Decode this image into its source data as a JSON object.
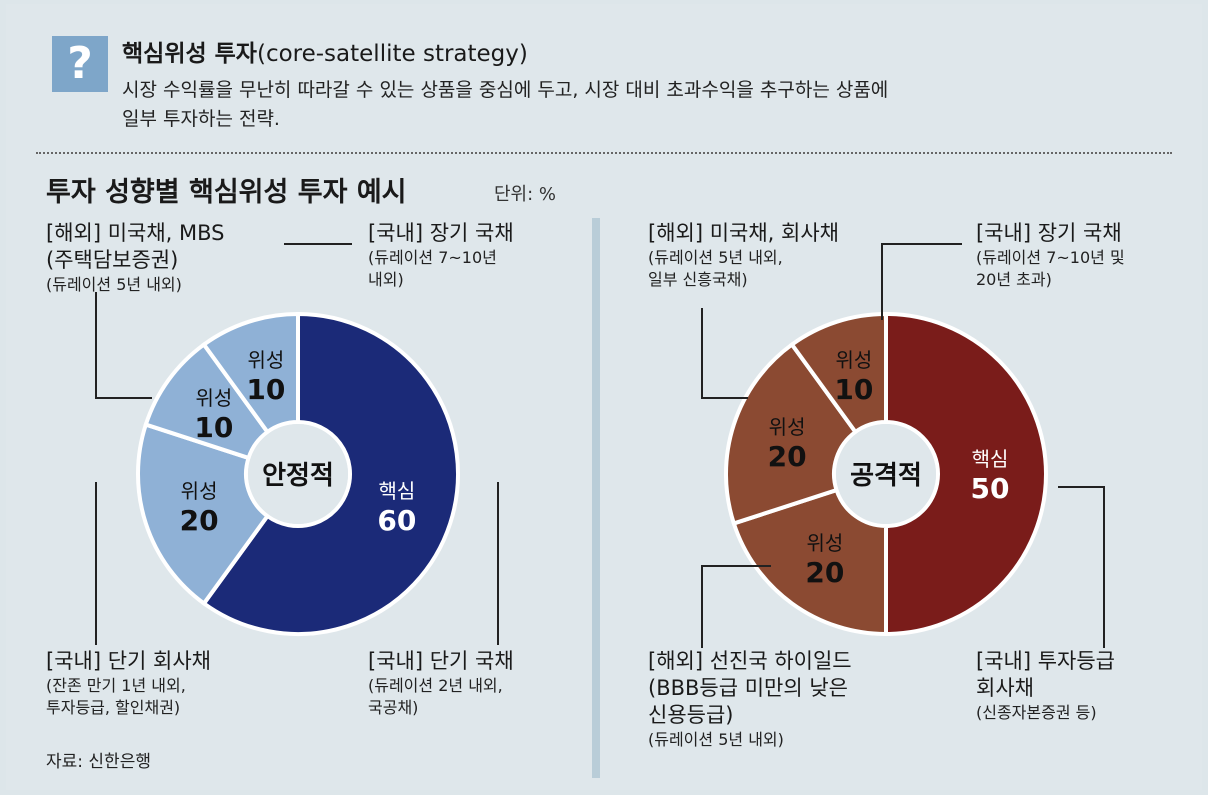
{
  "definition": {
    "icon": "question-mark-icon",
    "mark": "?",
    "title_ko": "핵심위성 투자",
    "title_en": "(core-satellite strategy)",
    "body_line1": "시장 수익률을 무난히 따라갈 수 있는 상품을 중심에 두고, 시장 대비 초과수익을 추구하는 상품에",
    "body_line2": "일부 투자하는 전략."
  },
  "chart_title": "투자 성향별 핵심위성 투자 예시",
  "unit_label": "단위: %",
  "source": "자료: 신한은행",
  "colors": {
    "stable_core": "#1b2a78",
    "stable_satellite": "#8fb1d6",
    "aggressive_core": "#7a1c1a",
    "aggressive_satellite": "#8b4a32",
    "background": "#dfe7eb"
  },
  "chart_data": [
    {
      "type": "pie",
      "donut": true,
      "center_label": "안정적",
      "slices": [
        {
          "name": "핵심",
          "value": 60,
          "heading": "[국내] 단기 국채",
          "details": [
            "(듀레이션 2년 내외,",
            "국공채)"
          ]
        },
        {
          "name": "위성",
          "value": 20,
          "heading": "[국내] 단기 회사채",
          "details": [
            "(잔존 만기 1년 내외,",
            "투자등급, 할인채권)"
          ]
        },
        {
          "name": "위성",
          "value": 10,
          "heading": "[해외] 미국채, MBS",
          "heading2": "(주택담보증권)",
          "details": [
            "(듀레이션 5년 내외)"
          ]
        },
        {
          "name": "위성",
          "value": 10,
          "heading": "[국내] 장기 국채",
          "details": [
            "(듀레이션 7~10년",
            "내외)"
          ]
        }
      ]
    },
    {
      "type": "pie",
      "donut": true,
      "center_label": "공격적",
      "slices": [
        {
          "name": "핵심",
          "value": 50,
          "heading": "[국내] 투자등급",
          "heading2": "회사채",
          "details": [
            "(신종자본증권 등)"
          ]
        },
        {
          "name": "위성",
          "value": 20,
          "heading": "[해외] 선진국 하이일드",
          "heading2": "(BBB등급 미만의 낮은",
          "heading3": "신용등급)",
          "details": [
            "(듀레이션 5년 내외)"
          ]
        },
        {
          "name": "위성",
          "value": 20,
          "heading": "[해외] 미국채, 회사채",
          "details": [
            "(듀레이션 5년 내외,",
            "일부 신흥국채)"
          ]
        },
        {
          "name": "위성",
          "value": 10,
          "heading": "[국내] 장기 국채",
          "details": [
            "(듀레이션 7~10년 및",
            "20년 초과)"
          ]
        }
      ]
    }
  ]
}
